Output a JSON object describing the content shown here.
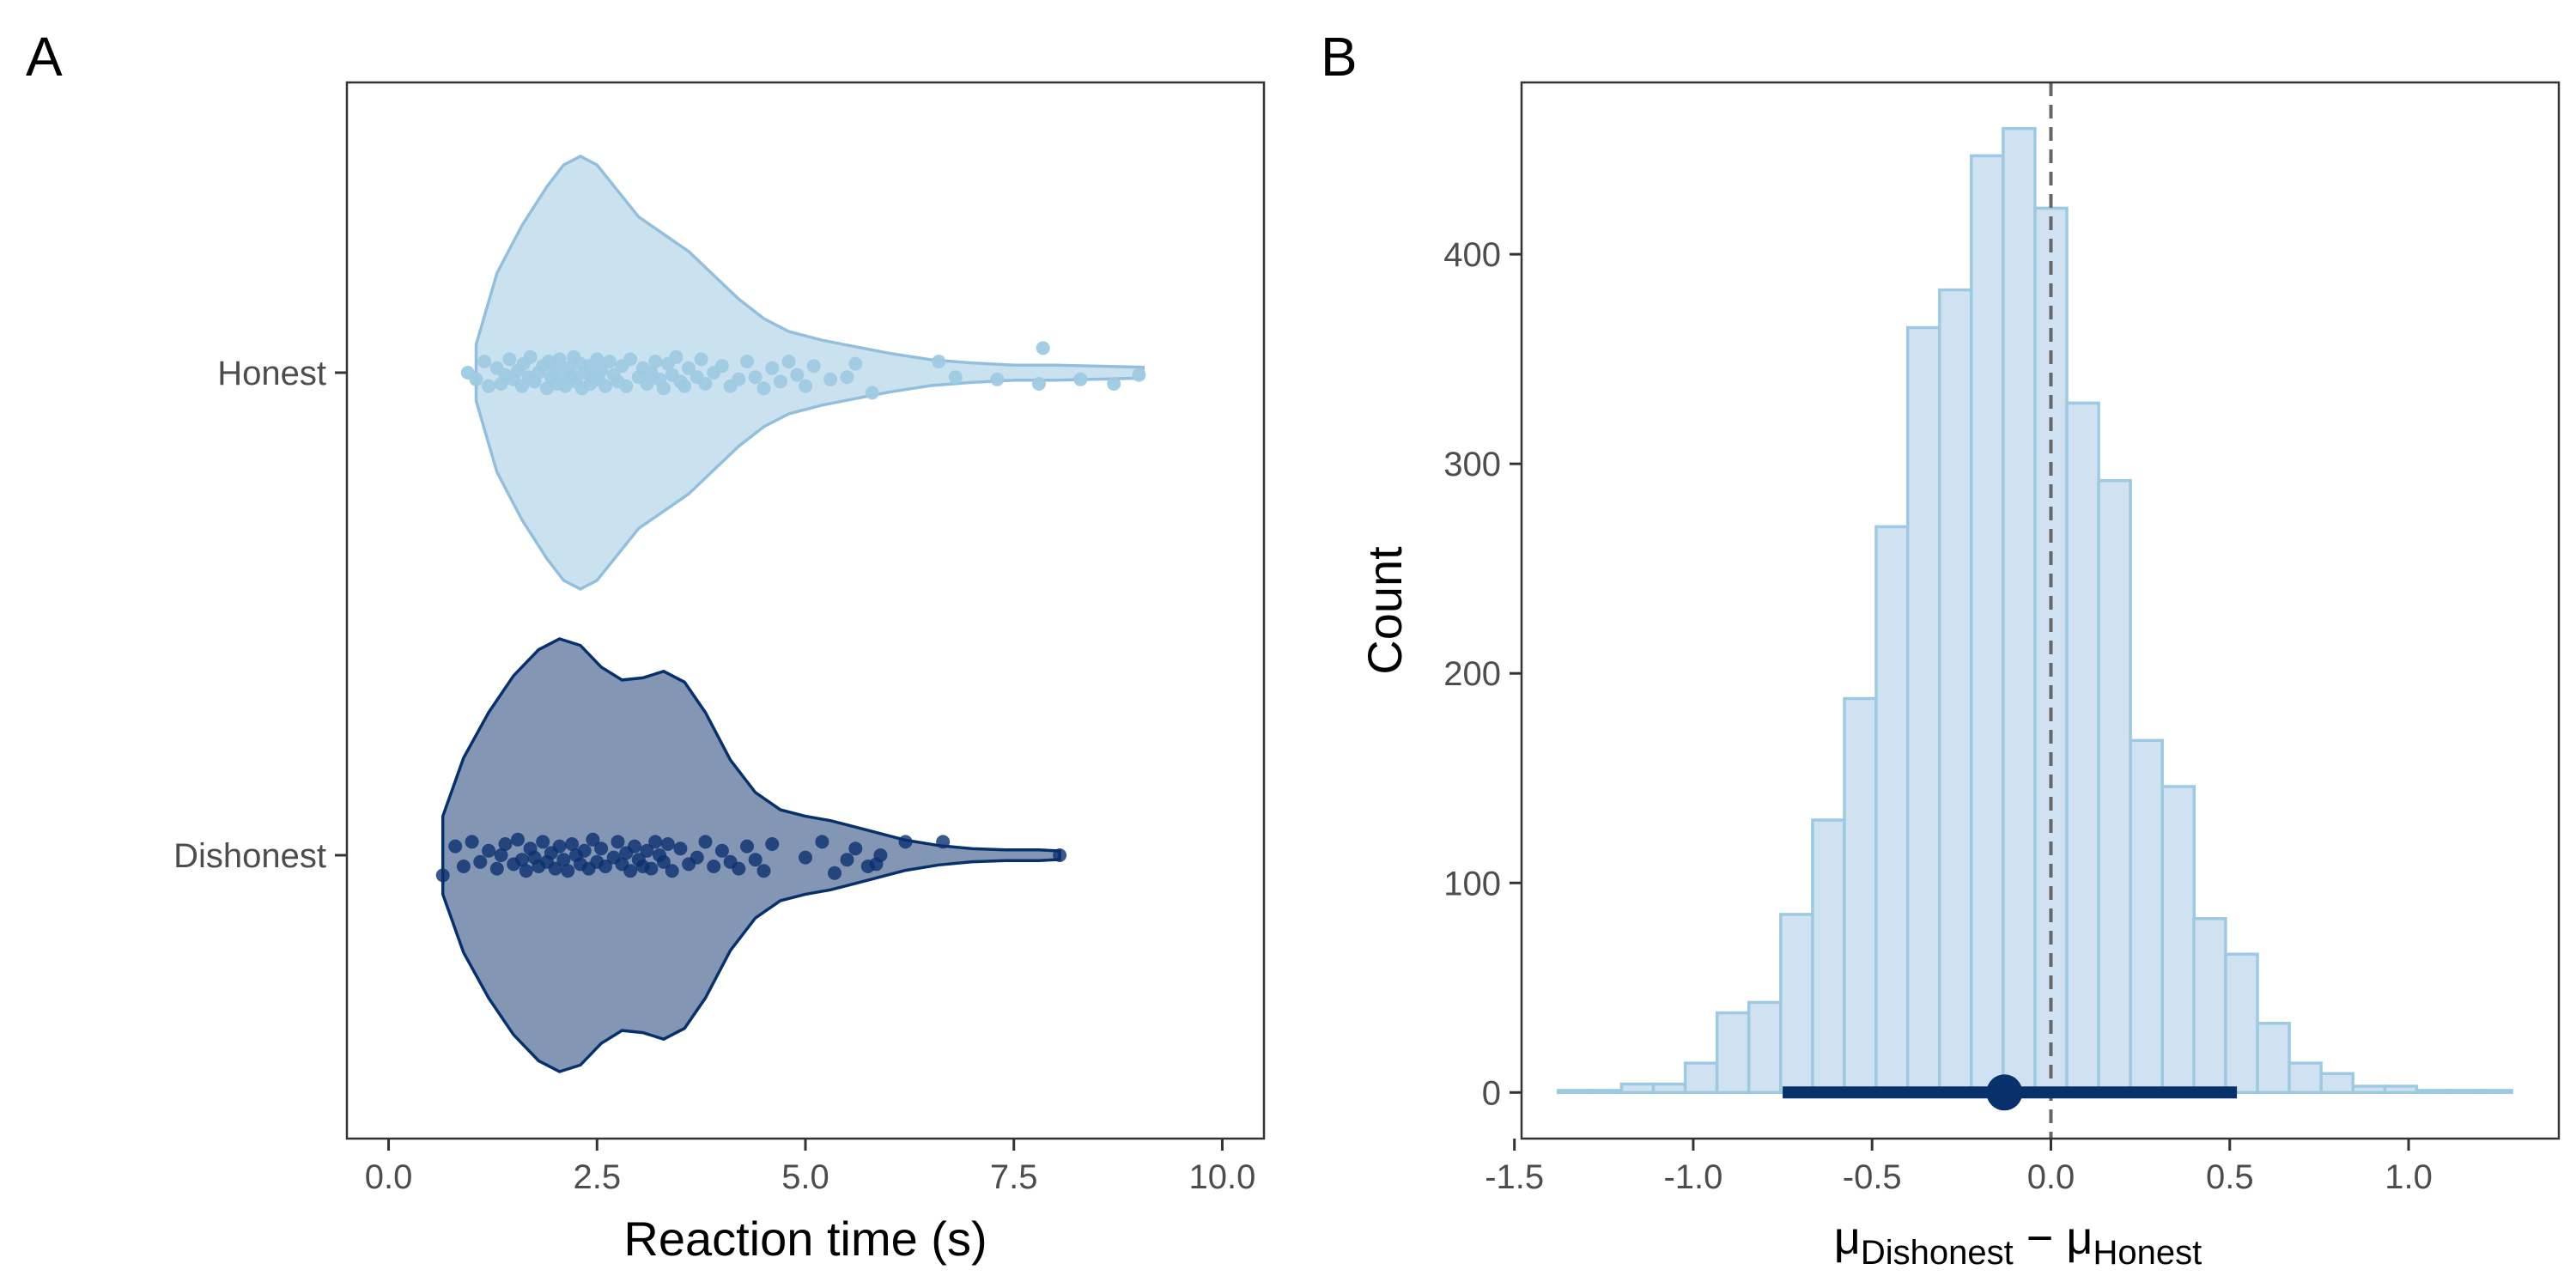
{
  "figure": {
    "panel_a_label": "A",
    "panel_b_label": "B"
  },
  "chart_data": [
    {
      "type": "violin",
      "xlabel": "Reaction time (s)",
      "ylabel": "",
      "xlim": [
        -0.5,
        10.5
      ],
      "xticks": [
        "0.0",
        "2.5",
        "5.0",
        "7.5",
        "10.0"
      ],
      "xtick_values": [
        0,
        2.5,
        5,
        7.5,
        10
      ],
      "grid": false,
      "categories": [
        "Honest",
        "Dishonest"
      ],
      "colors": {
        "Honest": "#9ecae1",
        "Dishonest": "#08306b"
      },
      "groups": [
        {
          "name": "Honest",
          "range": [
            1.05,
            9.05
          ],
          "density_profile": [
            [
              1.05,
              0.13
            ],
            [
              1.3,
              0.46
            ],
            [
              1.6,
              0.68
            ],
            [
              1.9,
              0.86
            ],
            [
              2.1,
              0.96
            ],
            [
              2.3,
              1.0
            ],
            [
              2.5,
              0.96
            ],
            [
              2.75,
              0.84
            ],
            [
              3.0,
              0.72
            ],
            [
              3.3,
              0.64
            ],
            [
              3.6,
              0.56
            ],
            [
              3.9,
              0.45
            ],
            [
              4.2,
              0.34
            ],
            [
              4.5,
              0.25
            ],
            [
              4.8,
              0.19
            ],
            [
              5.2,
              0.15
            ],
            [
              5.6,
              0.12
            ],
            [
              6.0,
              0.09
            ],
            [
              6.5,
              0.06
            ],
            [
              7.0,
              0.045
            ],
            [
              7.5,
              0.035
            ],
            [
              8.0,
              0.035
            ],
            [
              8.5,
              0.03
            ],
            [
              9.05,
              0.025
            ]
          ],
          "points_x": [
            0.95,
            1.05,
            1.15,
            1.2,
            1.3,
            1.35,
            1.4,
            1.45,
            1.5,
            1.55,
            1.6,
            1.62,
            1.68,
            1.7,
            1.75,
            1.8,
            1.85,
            1.9,
            1.92,
            1.95,
            2.0,
            2.02,
            2.05,
            2.1,
            2.12,
            2.15,
            2.2,
            2.22,
            2.25,
            2.3,
            2.32,
            2.35,
            2.4,
            2.42,
            2.45,
            2.5,
            2.52,
            2.55,
            2.6,
            2.65,
            2.7,
            2.75,
            2.8,
            2.85,
            2.9,
            3.0,
            3.05,
            3.1,
            3.15,
            3.2,
            3.25,
            3.3,
            3.35,
            3.4,
            3.45,
            3.5,
            3.55,
            3.6,
            3.7,
            3.75,
            3.8,
            3.9,
            4.0,
            4.1,
            4.2,
            4.3,
            4.4,
            4.5,
            4.6,
            4.7,
            4.8,
            4.9,
            5.0,
            5.1,
            5.3,
            5.5,
            5.6,
            5.8,
            6.6,
            6.8,
            7.3,
            7.8,
            7.85,
            8.3,
            8.7,
            9.0
          ],
          "points_jitter": [
            0.0,
            0.3,
            -0.5,
            0.6,
            -0.2,
            0.5,
            0.1,
            -0.6,
            0.3,
            -0.1,
            0.6,
            -0.4,
            0.2,
            -0.7,
            0.4,
            0.0,
            -0.3,
            0.7,
            -0.5,
            0.2,
            -0.1,
            0.5,
            -0.6,
            0.3,
            0.6,
            -0.2,
            0.1,
            -0.7,
            0.4,
            -0.4,
            0.7,
            0.0,
            -0.3,
            0.5,
            0.2,
            -0.6,
            0.3,
            -0.1,
            0.6,
            -0.5,
            0.1,
            0.4,
            -0.3,
            0.6,
            -0.6,
            0.2,
            -0.2,
            0.5,
            0.0,
            -0.5,
            0.3,
            0.7,
            -0.4,
            0.1,
            -0.7,
            0.4,
            0.6,
            -0.2,
            0.2,
            -0.6,
            0.5,
            0.0,
            -0.3,
            0.6,
            0.3,
            -0.5,
            0.2,
            0.7,
            -0.2,
            0.4,
            -0.5,
            0.1,
            0.6,
            -0.3,
            0.3,
            0.2,
            -0.4,
            0.9,
            -0.5,
            0.2,
            0.3,
            0.5,
            -1.1,
            0.3,
            0.5,
            0.1
          ]
        },
        {
          "name": "Dishonest",
          "range": [
            0.65,
            8.05
          ],
          "density_profile": [
            [
              0.65,
              0.18
            ],
            [
              0.9,
              0.45
            ],
            [
              1.2,
              0.66
            ],
            [
              1.5,
              0.83
            ],
            [
              1.8,
              0.95
            ],
            [
              2.05,
              1.0
            ],
            [
              2.3,
              0.97
            ],
            [
              2.55,
              0.87
            ],
            [
              2.8,
              0.81
            ],
            [
              3.05,
              0.82
            ],
            [
              3.3,
              0.85
            ],
            [
              3.55,
              0.8
            ],
            [
              3.8,
              0.66
            ],
            [
              4.1,
              0.44
            ],
            [
              4.4,
              0.29
            ],
            [
              4.7,
              0.21
            ],
            [
              5.0,
              0.18
            ],
            [
              5.3,
              0.16
            ],
            [
              5.6,
              0.13
            ],
            [
              5.9,
              0.1
            ],
            [
              6.2,
              0.07
            ],
            [
              6.6,
              0.045
            ],
            [
              7.0,
              0.03
            ],
            [
              7.4,
              0.025
            ],
            [
              7.8,
              0.025
            ],
            [
              8.05,
              0.02
            ]
          ],
          "points_x": [
            0.65,
            0.8,
            0.9,
            1.0,
            1.1,
            1.2,
            1.3,
            1.35,
            1.4,
            1.5,
            1.55,
            1.6,
            1.65,
            1.7,
            1.75,
            1.8,
            1.85,
            1.9,
            1.95,
            2.0,
            2.05,
            2.1,
            2.15,
            2.2,
            2.25,
            2.3,
            2.35,
            2.4,
            2.45,
            2.5,
            2.55,
            2.6,
            2.7,
            2.75,
            2.8,
            2.85,
            2.9,
            2.95,
            3.0,
            3.05,
            3.1,
            3.15,
            3.2,
            3.25,
            3.3,
            3.35,
            3.4,
            3.5,
            3.6,
            3.7,
            3.8,
            3.9,
            4.0,
            4.1,
            4.2,
            4.3,
            4.4,
            4.5,
            4.6,
            5.0,
            5.2,
            5.35,
            5.5,
            5.6,
            5.75,
            5.85,
            5.9,
            6.2,
            6.65,
            8.05
          ],
          "points_jitter": [
            0.9,
            -0.4,
            0.5,
            -0.6,
            0.3,
            -0.2,
            0.6,
            0.0,
            -0.5,
            0.4,
            -0.7,
            0.2,
            0.7,
            -0.3,
            0.1,
            0.5,
            -0.6,
            0.3,
            -0.1,
            0.6,
            -0.4,
            0.2,
            0.7,
            -0.5,
            0.0,
            0.4,
            -0.2,
            0.6,
            -0.7,
            0.3,
            -0.3,
            0.5,
            0.1,
            -0.6,
            0.4,
            -0.1,
            0.7,
            -0.4,
            0.2,
            0.5,
            -0.2,
            0.6,
            -0.6,
            0.0,
            0.3,
            -0.5,
            0.7,
            -0.3,
            0.4,
            0.1,
            -0.6,
            0.5,
            -0.2,
            0.3,
            0.6,
            -0.4,
            0.2,
            0.7,
            -0.5,
            0.1,
            -0.6,
            0.8,
            0.2,
            -0.3,
            0.5,
            0.4,
            0.0,
            -0.6,
            -0.6,
            0.0
          ]
        }
      ]
    },
    {
      "type": "histogram",
      "xlabel_mu_1": "μ",
      "xlabel_sub_1": "Dishonest",
      "xlabel_minus": " − ",
      "xlabel_mu_2": "μ",
      "xlabel_sub_2": "Honest",
      "ylabel": "Count",
      "xlim": [
        -1.48,
        1.42
      ],
      "ylim": [
        -22,
        482
      ],
      "xticks": [
        "-1.5",
        "-1.0",
        "-0.5",
        "0.0",
        "0.5",
        "1.0"
      ],
      "xtick_values": [
        -1.5,
        -1.0,
        -0.5,
        0.0,
        0.5,
        1.0
      ],
      "yticks": [
        "0",
        "100",
        "200",
        "300",
        "400"
      ],
      "ytick_values": [
        0,
        100,
        200,
        300,
        400
      ],
      "grid": false,
      "bin_width": 0.0889,
      "bin_centers": [
        -1.333,
        -1.244,
        -1.156,
        -1.067,
        -0.978,
        -0.889,
        -0.8,
        -0.711,
        -0.622,
        -0.533,
        -0.444,
        -0.356,
        -0.267,
        -0.178,
        -0.089,
        0.0,
        0.089,
        0.178,
        0.267,
        0.356,
        0.444,
        0.533,
        0.622,
        0.711,
        0.8,
        0.889,
        0.978,
        1.067,
        1.156,
        1.244
      ],
      "counts": [
        1,
        1,
        4,
        4,
        14,
        38,
        43,
        85,
        130,
        188,
        270,
        365,
        383,
        447,
        460,
        422,
        329,
        292,
        168,
        146,
        83,
        66,
        33,
        14,
        9,
        3,
        3,
        1,
        1,
        1
      ],
      "fill_color": "#d0e1f2",
      "edge_color": "#9ecae1",
      "reference_line_x": 0.0,
      "point_estimate": -0.13,
      "interval": [
        -0.75,
        0.52
      ],
      "interval_color": "#08306b"
    }
  ]
}
